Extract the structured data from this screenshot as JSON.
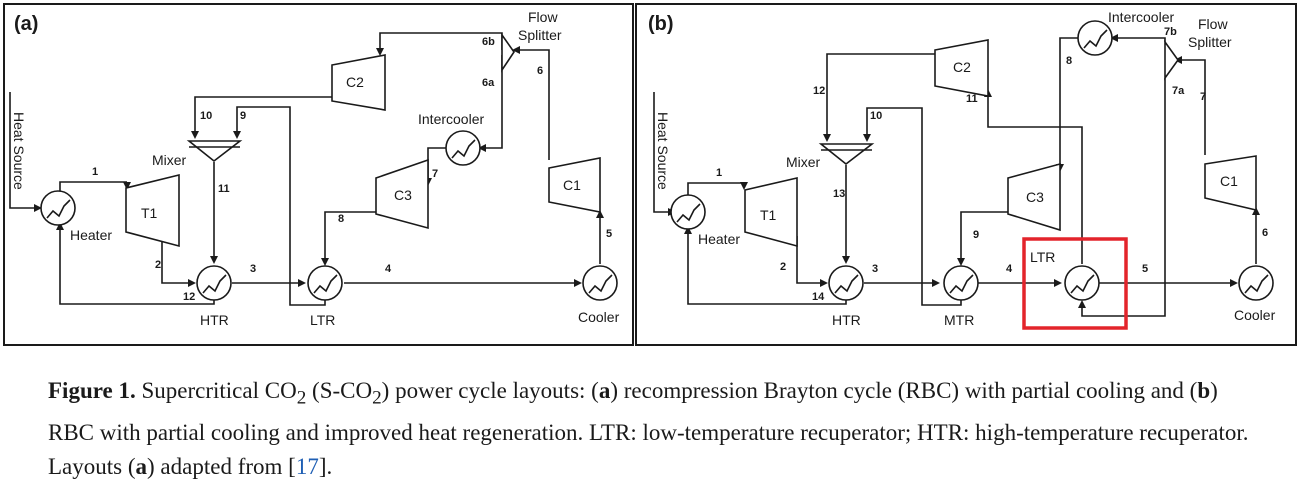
{
  "panel_a": {
    "label": "(a)",
    "components": {
      "heat_source": "Heat Source",
      "heater": "Heater",
      "t1": "T1",
      "mixer": "Mixer",
      "c2": "C2",
      "flow_splitter_1": "Flow",
      "flow_splitter_2": "Splitter",
      "intercooler": "Intercooler",
      "c3": "C3",
      "c1": "C1",
      "htr": "HTR",
      "ltr": "LTR",
      "cooler": "Cooler"
    },
    "states": [
      "1",
      "2",
      "3",
      "4",
      "5",
      "6",
      "6a",
      "6b",
      "7",
      "8",
      "9",
      "10",
      "11",
      "12"
    ]
  },
  "panel_b": {
    "label": "(b)",
    "components": {
      "heat_source": "Heat Source",
      "heater": "Heater",
      "t1": "T1",
      "mixer": "Mixer",
      "c2": "C2",
      "intercooler": "Intercooler",
      "flow_splitter_1": "Flow",
      "flow_splitter_2": "Splitter",
      "c3": "C3",
      "c1": "C1",
      "htr": "HTR",
      "mtr": "MTR",
      "ltr": "LTR",
      "cooler": "Cooler"
    },
    "states": [
      "1",
      "2",
      "3",
      "4",
      "5",
      "6",
      "7",
      "7a",
      "7b",
      "8",
      "9",
      "10",
      "11",
      "12",
      "13",
      "14"
    ],
    "highlight_color": "#e3242b"
  },
  "caption": {
    "fig_label": "Figure 1.",
    "s1": " Supercritical CO",
    "sub1": "2",
    "s2": " (S-CO",
    "sub2": "2",
    "s3": ") power cycle layouts: (",
    "a1": "a",
    "s4": ") recompression Brayton cycle (RBC) with partial cooling and (",
    "b1": "b",
    "s5": ") RBC with partial cooling and improved heat regeneration. LTR: low-temperature recuperator; HTR: high-temperature recuperator. Layouts (",
    "a2": "a",
    "s6": ") adapted from [",
    "ref": "17",
    "s7": "]."
  }
}
